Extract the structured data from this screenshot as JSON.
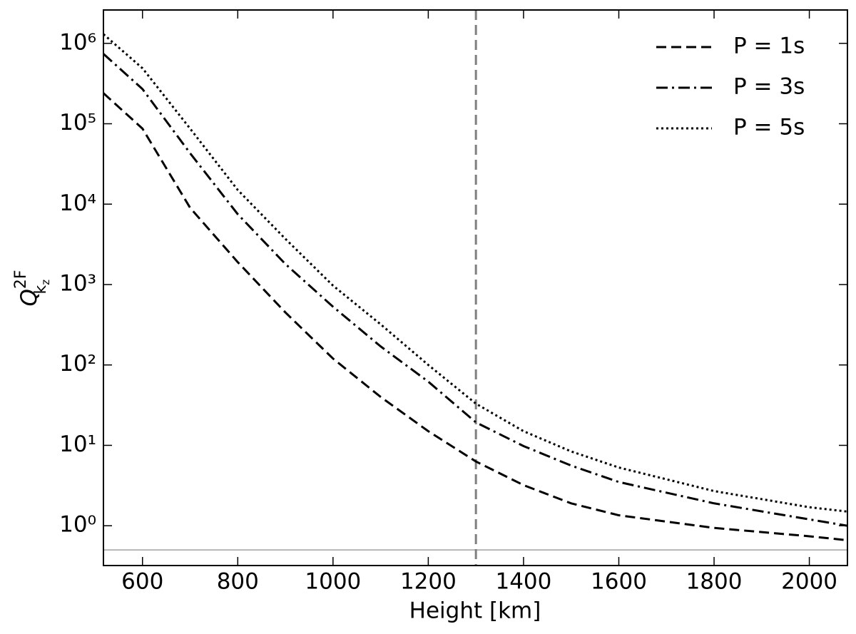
{
  "chart_data": {
    "type": "line",
    "xlabel": "Height [km]",
    "ylabel": {
      "symbol": "Q",
      "superscript": "2F",
      "subscript": "k",
      "subsubscript": "z"
    },
    "x": [
      518,
      600,
      700,
      800,
      900,
      1000,
      1100,
      1200,
      1300,
      1400,
      1500,
      1600,
      1800,
      2000,
      2080
    ],
    "series": [
      {
        "name": "P = 1s",
        "color": "#000000",
        "dash": "dashed",
        "values": [
          240000,
          87000,
          9000,
          1900,
          450,
          120,
          40,
          15,
          6.3,
          3.2,
          1.9,
          1.35,
          0.94,
          0.74,
          0.66
        ]
      },
      {
        "name": "P = 3s",
        "color": "#000000",
        "dash": "dashdot",
        "values": [
          740000,
          270000,
          43000,
          7500,
          1800,
          530,
          170,
          62,
          19.3,
          9.8,
          5.6,
          3.5,
          1.9,
          1.2,
          1.0
        ]
      },
      {
        "name": "P = 5s",
        "color": "#000000",
        "dash": "dotted",
        "values": [
          1300000,
          490000,
          87000,
          15000,
          3700,
          970,
          320,
          100,
          33,
          15,
          8.4,
          5.3,
          2.7,
          1.7,
          1.5
        ]
      }
    ],
    "xlim": [
      518,
      2080
    ],
    "ylim": [
      0.32,
      2600000
    ],
    "yscale": "log",
    "xticks": [
      600,
      800,
      1000,
      1200,
      1400,
      1600,
      1800,
      2000
    ],
    "yticks": [
      {
        "value": 1,
        "label": "10⁰"
      },
      {
        "value": 10,
        "label": "10¹"
      },
      {
        "value": 100,
        "label": "10²"
      },
      {
        "value": 1000,
        "label": "10³"
      },
      {
        "value": 10000,
        "label": "10⁴"
      },
      {
        "value": 100000,
        "label": "10⁵"
      },
      {
        "value": 1000000,
        "label": "10⁶"
      }
    ],
    "vlines": [
      {
        "x": 1300,
        "color": "#808080",
        "dash": "dashed"
      }
    ],
    "hlines": [
      {
        "y": 0.5,
        "color": "#a0a0a0"
      }
    ],
    "legend": "upper right",
    "grid": false
  }
}
